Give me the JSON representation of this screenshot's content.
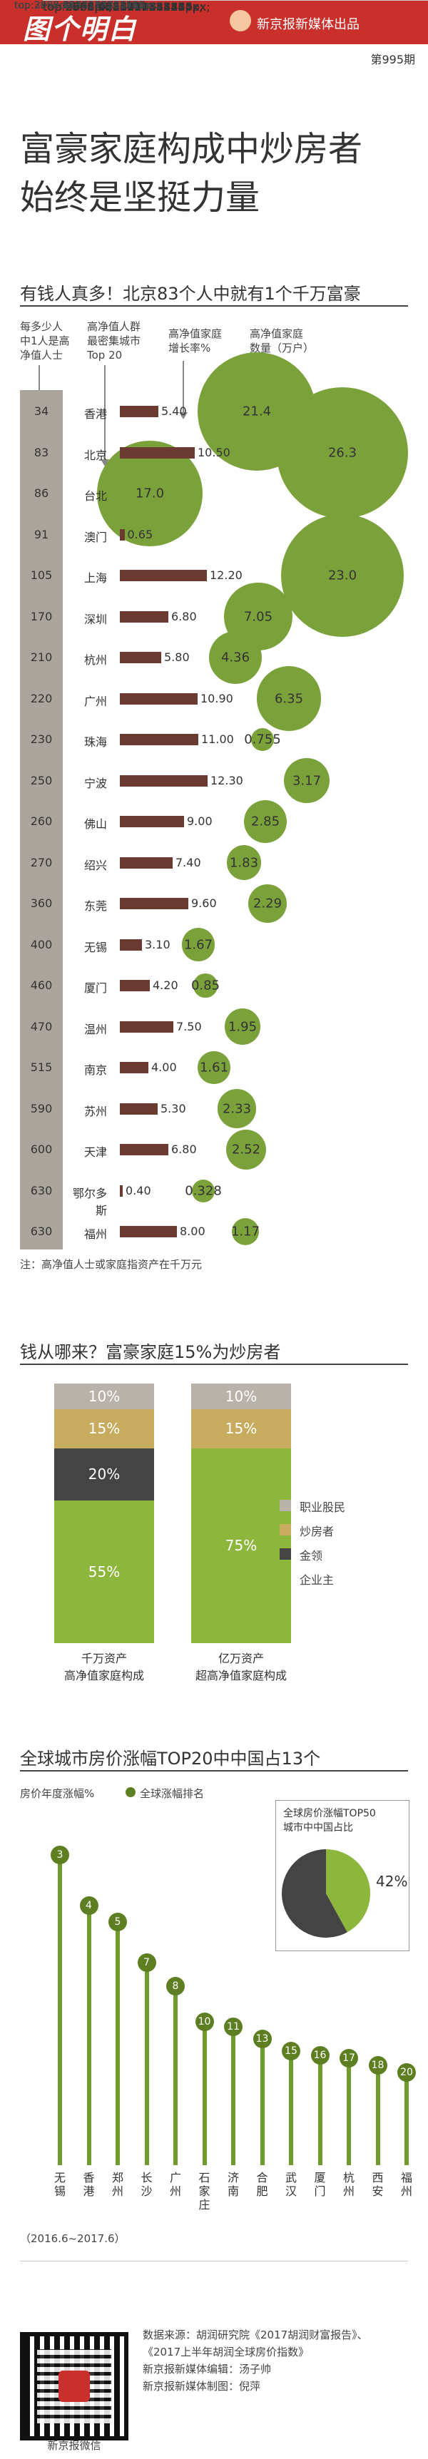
{
  "header": {
    "logo": "图个明白",
    "brand": "新京报新媒体出品",
    "issue": "第995期"
  },
  "title": {
    "line1": "富豪家庭构成中炒房者",
    "line2": "始终是坚挺力量"
  },
  "section1": {
    "title": "有钱人真多！北京83个人中就有1个千万富豪",
    "col_headers": {
      "c1": [
        "每多少人",
        "中1人是高",
        "净值人士"
      ],
      "c2": [
        "高净值人群",
        "最密集城市",
        "Top 20"
      ],
      "c3": [
        "高净值家庭",
        "增长率%"
      ],
      "c4": [
        "高净值家庭",
        "数量（万户）"
      ]
    },
    "note": "注：高净值人士或家庭指资产在千万元"
  },
  "chart_data": [
    {
      "type": "bar",
      "title": "有钱人真多！北京83个人中就有1个千万富豪",
      "categories": [
        "香港",
        "北京",
        "台北",
        "澳门",
        "上海",
        "深圳",
        "杭州",
        "广州",
        "珠海",
        "宁波",
        "佛山",
        "绍兴",
        "东莞",
        "无锡",
        "厦门",
        "温州",
        "南京",
        "苏州",
        "天津",
        "鄂尔多斯",
        "福州"
      ],
      "series": [
        {
          "name": "每多少人中1人是高净值人士",
          "values": [
            34,
            83,
            86,
            91,
            105,
            170,
            210,
            220,
            230,
            250,
            260,
            270,
            360,
            400,
            460,
            470,
            515,
            590,
            600,
            630,
            630
          ]
        },
        {
          "name": "高净值家庭增长率%",
          "values": [
            5.4,
            10.5,
            null,
            0.65,
            12.2,
            6.8,
            5.8,
            10.9,
            11.0,
            12.3,
            9.0,
            7.4,
            9.6,
            3.1,
            4.2,
            7.5,
            4.0,
            5.3,
            6.8,
            0.4,
            8.0
          ]
        },
        {
          "name": "高净值家庭数量（万户）",
          "values": [
            21.4,
            26.3,
            17.0,
            null,
            23.0,
            7.05,
            4.36,
            6.35,
            0.755,
            3.17,
            2.85,
            1.83,
            2.29,
            1.67,
            0.85,
            1.95,
            1.61,
            2.33,
            2.52,
            0.328,
            1.17
          ]
        }
      ],
      "labels": {
        "rate": [
          "5.40",
          "10.50",
          "",
          "0.65",
          "12.20",
          "6.80",
          "5.80",
          "10.90",
          "11.00",
          "12.30",
          "9.00",
          "7.40",
          "9.60",
          "3.10",
          "4.20",
          "7.50",
          "4.00",
          "5.30",
          "6.80",
          "0.40",
          "8.00"
        ],
        "count": [
          "21.4",
          "26.3",
          "17.0",
          "",
          "23.0",
          "7.05",
          "4.36",
          "6.35",
          "0.755",
          "3.17",
          "2.85",
          "1.83",
          "2.29",
          "1.67",
          "0.85",
          "1.95",
          "1.61",
          "2.33",
          "2.52",
          "0.328",
          "1.17"
        ]
      }
    },
    {
      "type": "bar",
      "title": "钱从哪来？富豪家庭15%为炒房者",
      "categories": [
        "千万资产高净值家庭构成",
        "亿万资产超高净值家庭构成"
      ],
      "series": [
        {
          "name": "职业股民",
          "values": [
            10,
            10
          ]
        },
        {
          "name": "炒房者",
          "values": [
            15,
            15
          ]
        },
        {
          "name": "金领",
          "values": [
            20,
            0
          ]
        },
        {
          "name": "企业主",
          "values": [
            55,
            75
          ]
        }
      ],
      "ylim": [
        0,
        100
      ]
    },
    {
      "type": "bar",
      "title": "全球城市房价涨幅TOP20中中国占13个",
      "ylabel": "房价年度涨幅%",
      "categories": [
        "无锡",
        "香港",
        "郑州",
        "长沙",
        "广州",
        "石家庄",
        "济南",
        "合肥",
        "武汉",
        "厦门",
        "杭州",
        "西安",
        "福州"
      ],
      "ranks": [
        "3",
        "4",
        "5",
        "7",
        "8",
        "10",
        "11",
        "13",
        "15",
        "16",
        "17",
        "18",
        "20"
      ],
      "values": [
        23.0,
        20.9,
        20.2,
        18.5,
        17.5,
        16.0,
        15.8,
        15.3,
        14.8,
        14.6,
        14.5,
        14.2,
        13.9
      ],
      "ylim": [
        10,
        24
      ],
      "yticks": [
        "10%",
        "11%",
        "12%",
        "13%",
        "14%",
        "15%",
        "16%",
        "17%",
        "18%",
        "19%",
        "20%",
        "21%",
        "22%",
        "23%",
        "24%"
      ],
      "legend": "全球涨幅排名",
      "period": "（2016.6~2017.6）"
    },
    {
      "type": "pie",
      "title": "全球房价涨幅TOP50城市中中国占比",
      "values": [
        42,
        58
      ],
      "labels": [
        "42%",
        ""
      ],
      "colors": [
        "#8db63c",
        "#444444"
      ]
    }
  ],
  "section2": {
    "title": "钱从哪来？富豪家庭15%为炒房者",
    "legend": [
      "职业股民",
      "炒房者",
      "金领",
      "企业主"
    ],
    "colors": {
      "broker": "#b8b2aa",
      "house": "#c7ab5e",
      "gold": "#444444",
      "owner": "#8db63c"
    },
    "stack1": {
      "labels": [
        "10%",
        "15%",
        "20%",
        "55%"
      ],
      "caption": [
        "千万资产",
        "高净值家庭构成"
      ]
    },
    "stack2": {
      "labels": [
        "10%",
        "15%",
        "75%"
      ],
      "caption": [
        "亿万资产",
        "超高净值家庭构成"
      ]
    }
  },
  "section3": {
    "title": "全球城市房价涨幅TOP20中中国占13个",
    "ylabel": "房价年度涨幅%",
    "legend": "全球涨幅排名",
    "period": "（2016.6~2017.6）",
    "pie_caption": [
      "全球房价涨幅TOP50",
      "城市中中国占比"
    ],
    "pie_label": "42%"
  },
  "footer": {
    "source1": "数据来源：胡润研究院《2017胡润财富报告》、",
    "source2": "《2017上半年胡润全球房价指数》",
    "editor": "新京报新媒体编辑：汤子帅",
    "designer": "新京报新媒体制图：倪萍",
    "qr_caption": "新京报微信"
  }
}
